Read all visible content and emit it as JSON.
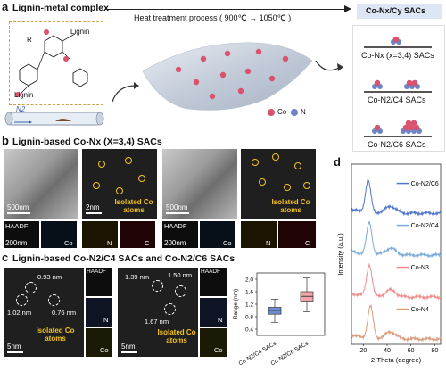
{
  "panel_a": {
    "letter": "a",
    "title": "Lignin-metal complex",
    "process_label": "Heat treatment process ( 900℃ → 1050℃ )",
    "product_label": "Co-Nx/Cy SACs",
    "structure_labels": {
      "lignin_top": "Lignin",
      "lignin_bottom": "Lignin",
      "r": "R",
      "n2": "N2"
    },
    "legend": {
      "co": "Co",
      "n": "N"
    },
    "sac_labels": [
      "Co-Nx (x=3,4) SACs",
      "Co-N2/C4 SACs",
      "Co-N2/C6 SACs"
    ],
    "colors": {
      "co": "#d9536f",
      "n": "#6a84c4",
      "banner": "#dce6f4"
    }
  },
  "panel_b": {
    "letter": "b",
    "title": "Lignin-based Co-Nx (X=3,4) SACs",
    "scale_tem": "500nm",
    "scale_stem": "2nm",
    "scale_haadf": "200nm",
    "annotation": "Isolated Co atoms",
    "map_labels": {
      "haadf": "HAADF",
      "co": "Co",
      "n": "N",
      "c": "C"
    }
  },
  "panel_c": {
    "letter": "c",
    "title": "Lignin-based Co-N2/C4 SACs and Co-N2/C6 SACs",
    "scale": "5nm",
    "annotation": "Isolated Co atoms",
    "distances_left": [
      "0.93 nm",
      "1.02 nm",
      "0.76 nm"
    ],
    "distances_right": [
      "1.39 nm",
      "1.50 nm",
      "1.67 nm"
    ],
    "map_labels": {
      "haadf": "HAADF",
      "n": "N",
      "co": "Co"
    }
  },
  "panel_d": {
    "letter": "d"
  },
  "chart_data": [
    {
      "type": "box",
      "ylabel": "Range (nm)",
      "ylim": [
        0.2,
        2.2
      ],
      "yticks": [
        "0.4",
        "0.8",
        "1.2",
        "1.6",
        "2.0"
      ],
      "categories": [
        "Co-N2/C4 SACs",
        "Co-N2/C6 SACs"
      ],
      "boxes": [
        {
          "name": "Co-N2/C4 SACs",
          "min": 0.62,
          "q1": 0.88,
          "median": 1.0,
          "q3": 1.1,
          "max": 1.36,
          "color": "#6f8ed0"
        },
        {
          "name": "Co-N2/C6 SACs",
          "min": 0.96,
          "q1": 1.3,
          "median": 1.45,
          "q3": 1.6,
          "max": 2.04,
          "color": "#f2a4a8"
        }
      ]
    },
    {
      "type": "line",
      "xlabel": "2-Theta (degree)",
      "ylabel": "Intensity (a.u.)",
      "xlim": [
        10,
        85
      ],
      "xticks": [
        "20",
        "40",
        "60",
        "80"
      ],
      "series": [
        {
          "name": "Co-N2/C6",
          "color": "#4f75c9",
          "peak_2theta": 24,
          "secondary_2theta": 43,
          "offset": 3.0
        },
        {
          "name": "Co-N2/C4",
          "color": "#7aaad8",
          "peak_2theta": 25,
          "secondary_2theta": 43,
          "offset": 2.0
        },
        {
          "name": "Co-N3",
          "color": "#ef8d8d",
          "peak_2theta": 25,
          "secondary_2theta": 43,
          "offset": 1.0
        },
        {
          "name": "Co-N4",
          "color": "#d89a7a",
          "peak_2theta": 26,
          "secondary_2theta": 43,
          "offset": 0.0
        }
      ]
    }
  ]
}
